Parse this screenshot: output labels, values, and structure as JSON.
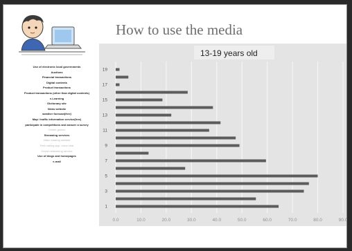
{
  "slide": {
    "title": "How to use the media",
    "avatar_icon": "boy-at-laptop-icon"
  },
  "left_list": {
    "items": [
      {
        "label": "Use of electronic local governments",
        "faded": false
      },
      {
        "label": "Auctions",
        "faded": false
      },
      {
        "label": "Financial transactions",
        "faded": false
      },
      {
        "label": "Digital contents",
        "faded": false
      },
      {
        "label": "Product transactions",
        "faded": false
      },
      {
        "label": "Product transactions (other than digital contents)",
        "faded": false
      },
      {
        "label": "e-Learning",
        "faded": false
      },
      {
        "label": "Dictionary site",
        "faded": false
      },
      {
        "label": "News website",
        "faded": false
      },
      {
        "label": "weather forecast(free)",
        "faded": false
      },
      {
        "label": "Map / traffic information service(free)",
        "faded": false
      },
      {
        "label": "participate in competitions and answer a survey",
        "faded": false
      },
      {
        "label": "Online games",
        "faded": true
      },
      {
        "label": "Streaming services",
        "faded": false
      },
      {
        "label": "Video sharing website",
        "faded": true
      },
      {
        "label": "Free calling app, voice chat",
        "faded": true
      },
      {
        "label": "Social networking service",
        "faded": true
      },
      {
        "label": "Use of blogs and homepages",
        "faded": false
      },
      {
        "label": "e-mail",
        "faded": false
      }
    ]
  },
  "chart_data": {
    "type": "bar",
    "orientation": "horizontal",
    "title": "13-19 years old",
    "categories": [
      "1",
      "2",
      "3",
      "4",
      "5",
      "6",
      "7",
      "8",
      "9",
      "10",
      "11",
      "12",
      "13",
      "14",
      "15",
      "16",
      "17",
      "18",
      "19"
    ],
    "y_tick_labels": [
      "1",
      "3",
      "5",
      "7",
      "9",
      "11",
      "13",
      "15",
      "17",
      "19"
    ],
    "values": [
      64.5,
      55.5,
      74.5,
      76.5,
      80.0,
      27.5,
      59.5,
      13.0,
      49.0,
      47.5,
      37.0,
      41.5,
      22.0,
      38.5,
      18.5,
      28.5,
      1.5,
      5.0,
      1.5
    ],
    "xlim": [
      0,
      90
    ],
    "x_ticks": [
      "0.0",
      "10.0",
      "20.0",
      "30.0",
      "40.0",
      "50.0",
      "60.0",
      "70.0",
      "80.0",
      "90.0"
    ],
    "grid": true,
    "colors": {
      "bar": "#5c5c5c",
      "title_box": "#eeeeee",
      "plot_background": "#e4e4e4",
      "grid": "#f5f5f5",
      "tick_text": "#8f8f8f"
    }
  }
}
